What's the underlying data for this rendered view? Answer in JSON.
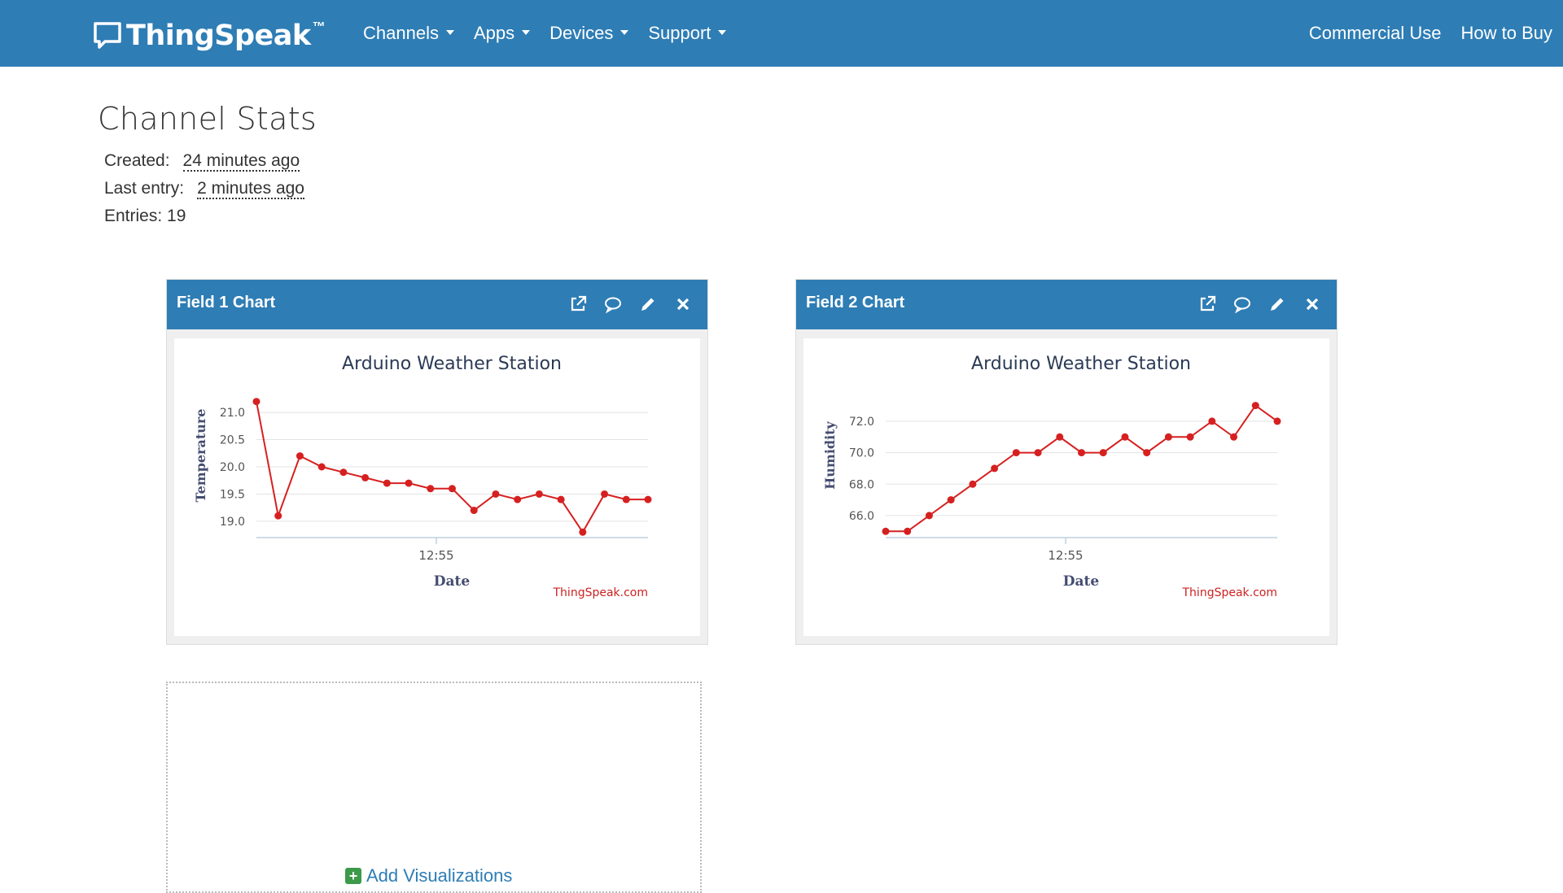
{
  "navbar": {
    "brand": "ThingSpeak",
    "trademark": "™",
    "menu": [
      {
        "label": "Channels"
      },
      {
        "label": "Apps"
      },
      {
        "label": "Devices"
      },
      {
        "label": "Support"
      }
    ],
    "right": [
      {
        "label": "Commercial Use"
      },
      {
        "label": "How to Buy"
      }
    ]
  },
  "stats": {
    "title": "Channel Stats",
    "created_label": "Created:",
    "created_value": "24 minutes ago",
    "last_entry_label": "Last entry:",
    "last_entry_value": "2 minutes ago",
    "entries_text": "Entries: 19"
  },
  "widgets": [
    {
      "title": "Field 1 Chart"
    },
    {
      "title": "Field 2 Chart"
    }
  ],
  "add_visualizations": "Add Visualizations",
  "colors": {
    "navbar": "#2e7db5",
    "series": "#d62020",
    "axis_title": "#444d70"
  },
  "chart_data": [
    {
      "type": "line",
      "title": "Arduino Weather Station",
      "xlabel": "Date",
      "ylabel": "Temperature",
      "credit": "ThingSpeak.com",
      "x_tick_labels": [
        "12:55"
      ],
      "y_ticks": [
        19.0,
        19.5,
        20.0,
        20.5,
        21.0
      ],
      "y_tick_labels": [
        "19.0",
        "19.5",
        "20.0",
        "20.5",
        "21.0"
      ],
      "ylim": [
        18.7,
        21.3
      ],
      "grid": true,
      "series": [
        {
          "values": [
            21.2,
            19.1,
            20.2,
            20.0,
            19.9,
            19.8,
            19.7,
            19.7,
            19.6,
            19.6,
            19.2,
            19.5,
            19.4,
            19.5,
            19.4,
            18.8,
            19.5,
            19.4,
            19.4
          ]
        }
      ]
    },
    {
      "type": "line",
      "title": "Arduino Weather Station",
      "xlabel": "Date",
      "ylabel": "Humidity",
      "credit": "ThingSpeak.com",
      "x_tick_labels": [
        "12:55"
      ],
      "y_ticks": [
        66.0,
        68.0,
        70.0,
        72.0
      ],
      "y_tick_labels": [
        "66.0",
        "68.0",
        "70.0",
        "72.0"
      ],
      "ylim": [
        64.6,
        73.6
      ],
      "grid": true,
      "series": [
        {
          "values": [
            65,
            65,
            66,
            67,
            68,
            69,
            70,
            70,
            71,
            70,
            70,
            71,
            70,
            71,
            71,
            72,
            71,
            73,
            72
          ]
        }
      ]
    }
  ]
}
